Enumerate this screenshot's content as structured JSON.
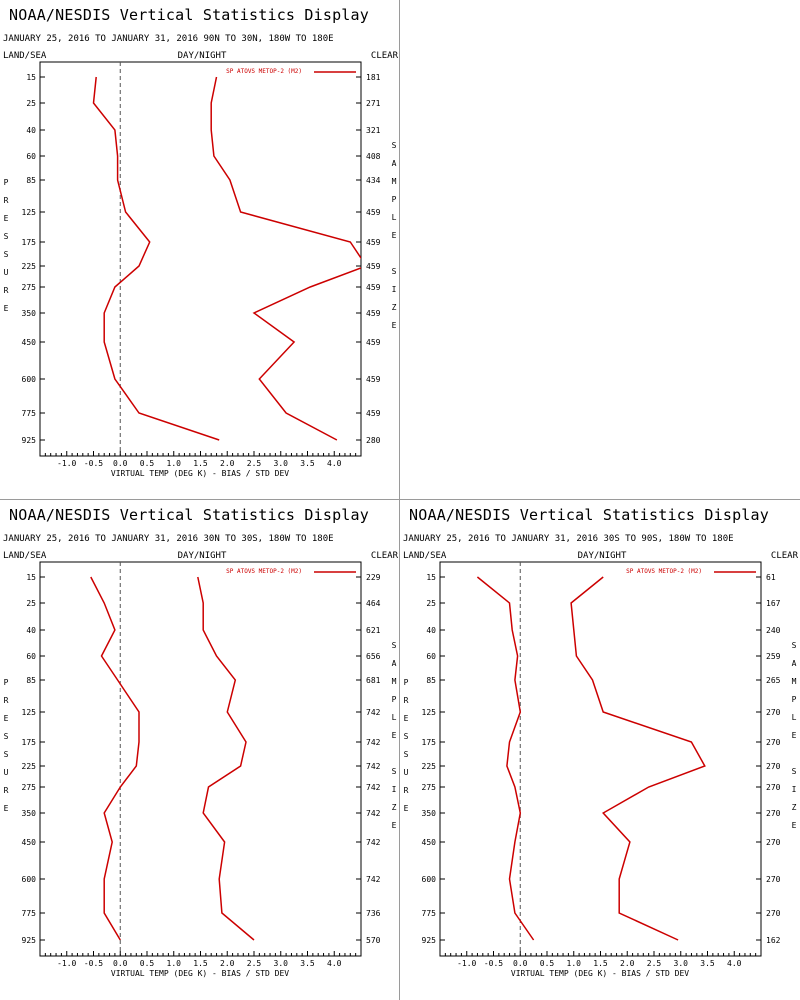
{
  "page": {
    "divider_color": "#9a9a9a"
  },
  "chart_data": [
    {
      "type": "line",
      "title": "NOAA/NESDIS Vertical Statistics Display",
      "subtitle": "JANUARY 25, 2016 TO JANUARY 31, 2016   90N TO 30N, 180W TO 180E",
      "top_left": "LAND/SEA",
      "top_center": "DAY/NIGHT",
      "top_right": "CLEAR",
      "ylabel": "PRESSURE",
      "y2label": "SAMPLE SIZE",
      "xlabel": "VIRTUAL TEMP (DEG K) - BIAS / STD DEV",
      "x_ticks": [
        "-1.0",
        "-0.5",
        "0.0",
        "0.5",
        "1.0",
        "1.5",
        "2.0",
        "2.5",
        "3.0",
        "3.5",
        "4.0"
      ],
      "xlim": [
        -1.5,
        4.5
      ],
      "levels": [
        15,
        25,
        40,
        60,
        85,
        125,
        175,
        225,
        275,
        350,
        450,
        600,
        775,
        925
      ],
      "sample_size": [
        181,
        271,
        321,
        408,
        434,
        459,
        459,
        459,
        459,
        459,
        459,
        459,
        459,
        280
      ],
      "legend": "SP ATOVS METOP-2 (M2)",
      "line_color": "#cc0000",
      "series": [
        {
          "values": [
            -0.45,
            -0.5,
            -0.1,
            -0.05,
            -0.05,
            0.1,
            0.55,
            0.35,
            -0.1,
            -0.3,
            -0.3,
            -0.1,
            0.35,
            1.85
          ]
        },
        {
          "values": [
            1.8,
            1.7,
            1.7,
            1.75,
            2.05,
            2.25,
            4.3,
            4.6,
            3.55,
            2.5,
            3.25,
            2.6,
            3.1,
            4.05
          ]
        }
      ]
    },
    {
      "type": "line",
      "title": "NOAA/NESDIS Vertical Statistics Display",
      "subtitle": "JANUARY 25, 2016 TO JANUARY 31, 2016   30N TO 30S, 180W TO 180E",
      "top_left": "LAND/SEA",
      "top_center": "DAY/NIGHT",
      "top_right": "CLEAR",
      "ylabel": "PRESSURE",
      "y2label": "SAMPLE SIZE",
      "xlabel": "VIRTUAL TEMP (DEG K) - BIAS / STD DEV",
      "x_ticks": [
        "-1.0",
        "-0.5",
        "0.0",
        "0.5",
        "1.0",
        "1.5",
        "2.0",
        "2.5",
        "3.0",
        "3.5",
        "4.0"
      ],
      "xlim": [
        -1.5,
        4.5
      ],
      "levels": [
        15,
        25,
        40,
        60,
        85,
        125,
        175,
        225,
        275,
        350,
        450,
        600,
        775,
        925
      ],
      "sample_size": [
        229,
        464,
        621,
        656,
        681,
        742,
        742,
        742,
        742,
        742,
        742,
        742,
        736,
        570
      ],
      "legend": "SP ATOVS METOP-2 (M2)",
      "line_color": "#cc0000",
      "series": [
        {
          "values": [
            -0.55,
            -0.3,
            -0.1,
            -0.35,
            -0.05,
            0.35,
            0.35,
            0.3,
            0.0,
            -0.3,
            -0.15,
            -0.3,
            -0.3,
            0.0
          ]
        },
        {
          "values": [
            1.45,
            1.55,
            1.55,
            1.8,
            2.15,
            2.0,
            2.35,
            2.25,
            1.65,
            1.55,
            1.95,
            1.85,
            1.9,
            2.5
          ]
        }
      ]
    },
    {
      "type": "line",
      "title": "NOAA/NESDIS Vertical Statistics Display",
      "subtitle": "JANUARY 25, 2016 TO JANUARY 31, 2016   30S TO 90S, 180W TO 180E",
      "top_left": "LAND/SEA",
      "top_center": "DAY/NIGHT",
      "top_right": "CLEAR",
      "ylabel": "PRESSURE",
      "y2label": "SAMPLE SIZE",
      "xlabel": "VIRTUAL TEMP (DEG K) - BIAS / STD DEV",
      "x_ticks": [
        "-1.0",
        "-0.5",
        "0.0",
        "0.5",
        "1.0",
        "1.5",
        "2.0",
        "2.5",
        "3.0",
        "3.5",
        "4.0"
      ],
      "xlim": [
        -1.5,
        4.5
      ],
      "levels": [
        15,
        25,
        40,
        60,
        85,
        125,
        175,
        225,
        275,
        350,
        450,
        600,
        775,
        925
      ],
      "sample_size": [
        61,
        167,
        240,
        259,
        265,
        270,
        270,
        270,
        270,
        270,
        270,
        270,
        270,
        162
      ],
      "legend": "SP ATOVS METOP-2 (M2)",
      "line_color": "#cc0000",
      "series": [
        {
          "values": [
            -0.8,
            -0.2,
            -0.15,
            -0.05,
            -0.1,
            0.0,
            -0.2,
            -0.25,
            -0.1,
            0.0,
            -0.1,
            -0.2,
            -0.1,
            0.25
          ]
        },
        {
          "values": [
            1.55,
            0.95,
            1.0,
            1.05,
            1.35,
            1.55,
            3.2,
            3.45,
            2.4,
            1.55,
            2.05,
            1.85,
            1.85,
            2.95
          ]
        }
      ]
    }
  ]
}
